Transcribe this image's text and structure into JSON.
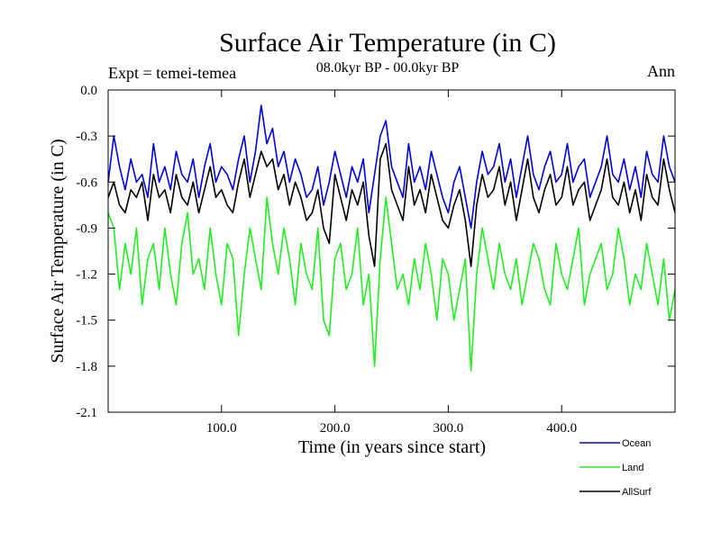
{
  "chart_data": {
    "type": "line",
    "title": "Surface Air Temperature (in C)",
    "subtitle": "08.0kyr BP - 00.0kyr BP",
    "experiment_label": "Expt = temei-temea",
    "period_label": "Ann",
    "xlabel": "Time (in years since start)",
    "ylabel": "Surface Air Temperature (in C)",
    "xlim": [
      0,
      500
    ],
    "ylim": [
      -2.1,
      0.0
    ],
    "x_ticks": [
      100,
      200,
      300,
      400
    ],
    "x_tick_labels": [
      "100.0",
      "200.0",
      "300.0",
      "400.0"
    ],
    "y_ticks": [
      0.0,
      -0.3,
      -0.6,
      -0.9,
      -1.2,
      -1.5,
      -1.8,
      -2.1
    ],
    "y_tick_labels": [
      "0.0",
      "-0.3",
      "-0.6",
      "-0.9",
      "-1.2",
      "-1.5",
      "-1.8",
      "-2.1"
    ],
    "grid": false,
    "legend_position": "bottom-right, below plot",
    "x": [
      0,
      5,
      10,
      15,
      20,
      25,
      30,
      35,
      40,
      45,
      50,
      55,
      60,
      65,
      70,
      75,
      80,
      85,
      90,
      95,
      100,
      105,
      110,
      115,
      120,
      125,
      130,
      135,
      140,
      145,
      150,
      155,
      160,
      165,
      170,
      175,
      180,
      185,
      190,
      195,
      200,
      205,
      210,
      215,
      220,
      225,
      230,
      235,
      240,
      245,
      250,
      255,
      260,
      265,
      270,
      275,
      280,
      285,
      290,
      295,
      300,
      305,
      310,
      315,
      320,
      325,
      330,
      335,
      340,
      345,
      350,
      355,
      360,
      365,
      370,
      375,
      380,
      385,
      390,
      395,
      400,
      405,
      410,
      415,
      420,
      425,
      430,
      435,
      440,
      445,
      450,
      455,
      460,
      465,
      470,
      475,
      480,
      485,
      490,
      495,
      500
    ],
    "series": [
      {
        "name": "Ocean",
        "color": "#0000dd",
        "values": [
          -0.6,
          -0.3,
          -0.5,
          -0.65,
          -0.45,
          -0.6,
          -0.55,
          -0.7,
          -0.35,
          -0.6,
          -0.5,
          -0.65,
          -0.4,
          -0.55,
          -0.6,
          -0.45,
          -0.7,
          -0.5,
          -0.35,
          -0.6,
          -0.5,
          -0.55,
          -0.65,
          -0.45,
          -0.3,
          -0.6,
          -0.4,
          -0.1,
          -0.35,
          -0.25,
          -0.5,
          -0.4,
          -0.6,
          -0.45,
          -0.55,
          -0.7,
          -0.65,
          -0.5,
          -0.75,
          -0.6,
          -0.4,
          -0.55,
          -0.7,
          -0.5,
          -0.6,
          -0.45,
          -0.8,
          -0.55,
          -0.3,
          -0.2,
          -0.5,
          -0.6,
          -0.7,
          -0.35,
          -0.6,
          -0.5,
          -0.65,
          -0.4,
          -0.55,
          -0.7,
          -0.8,
          -0.6,
          -0.5,
          -0.7,
          -0.9,
          -0.6,
          -0.4,
          -0.55,
          -0.5,
          -0.35,
          -0.6,
          -0.45,
          -0.7,
          -0.5,
          -0.3,
          -0.55,
          -0.65,
          -0.5,
          -0.4,
          -0.6,
          -0.55,
          -0.35,
          -0.6,
          -0.5,
          -0.45,
          -0.7,
          -0.6,
          -0.5,
          -0.3,
          -0.55,
          -0.6,
          -0.45,
          -0.65,
          -0.5,
          -0.7,
          -0.4,
          -0.55,
          -0.6,
          -0.3,
          -0.5,
          -0.6
        ]
      },
      {
        "name": "Land",
        "color": "#22ee22",
        "values": [
          -0.8,
          -0.9,
          -1.3,
          -1.0,
          -1.2,
          -0.9,
          -1.4,
          -1.1,
          -1.0,
          -1.3,
          -0.9,
          -1.2,
          -1.4,
          -1.0,
          -0.8,
          -1.2,
          -1.1,
          -1.3,
          -0.9,
          -1.2,
          -1.4,
          -1.0,
          -1.1,
          -1.6,
          -1.2,
          -0.9,
          -1.1,
          -1.3,
          -0.7,
          -1.0,
          -1.2,
          -0.9,
          -1.1,
          -1.4,
          -1.0,
          -1.2,
          -1.3,
          -0.9,
          -1.5,
          -1.6,
          -1.1,
          -1.0,
          -1.3,
          -1.2,
          -0.9,
          -1.4,
          -1.2,
          -1.8,
          -1.1,
          -0.7,
          -1.0,
          -1.3,
          -1.2,
          -1.4,
          -1.1,
          -1.3,
          -1.0,
          -1.2,
          -1.5,
          -1.1,
          -1.2,
          -1.5,
          -1.3,
          -1.1,
          -1.83,
          -1.2,
          -0.9,
          -1.1,
          -1.3,
          -1.0,
          -1.2,
          -1.3,
          -1.1,
          -1.4,
          -1.2,
          -1.0,
          -1.1,
          -1.3,
          -1.4,
          -1.0,
          -1.2,
          -1.3,
          -1.1,
          -0.9,
          -1.4,
          -1.2,
          -1.1,
          -1.0,
          -1.3,
          -1.2,
          -0.9,
          -1.1,
          -1.4,
          -1.2,
          -1.3,
          -1.0,
          -1.2,
          -1.4,
          -1.1,
          -1.5,
          -1.3
        ]
      },
      {
        "name": "AllSurf",
        "color": "#000000",
        "values": [
          -0.7,
          -0.6,
          -0.75,
          -0.8,
          -0.65,
          -0.7,
          -0.6,
          -0.85,
          -0.55,
          -0.7,
          -0.65,
          -0.8,
          -0.55,
          -0.7,
          -0.75,
          -0.6,
          -0.8,
          -0.65,
          -0.5,
          -0.7,
          -0.65,
          -0.75,
          -0.8,
          -0.6,
          -0.45,
          -0.7,
          -0.55,
          -0.4,
          -0.5,
          -0.45,
          -0.65,
          -0.55,
          -0.75,
          -0.6,
          -0.7,
          -0.85,
          -0.8,
          -0.65,
          -0.9,
          -1.0,
          -0.55,
          -0.7,
          -0.85,
          -0.65,
          -0.75,
          -0.6,
          -0.95,
          -1.15,
          -0.45,
          -0.35,
          -0.65,
          -0.75,
          -0.85,
          -0.5,
          -0.75,
          -0.65,
          -0.8,
          -0.55,
          -0.7,
          -0.85,
          -0.9,
          -0.75,
          -0.65,
          -0.85,
          -1.15,
          -0.75,
          -0.55,
          -0.7,
          -0.65,
          -0.5,
          -0.75,
          -0.6,
          -0.85,
          -0.65,
          -0.45,
          -0.7,
          -0.8,
          -0.65,
          -0.55,
          -0.75,
          -0.7,
          -0.5,
          -0.75,
          -0.65,
          -0.6,
          -0.85,
          -0.75,
          -0.65,
          -0.45,
          -0.7,
          -0.75,
          -0.6,
          -0.8,
          -0.65,
          -0.85,
          -0.55,
          -0.7,
          -0.75,
          -0.45,
          -0.65,
          -0.8
        ]
      }
    ]
  }
}
